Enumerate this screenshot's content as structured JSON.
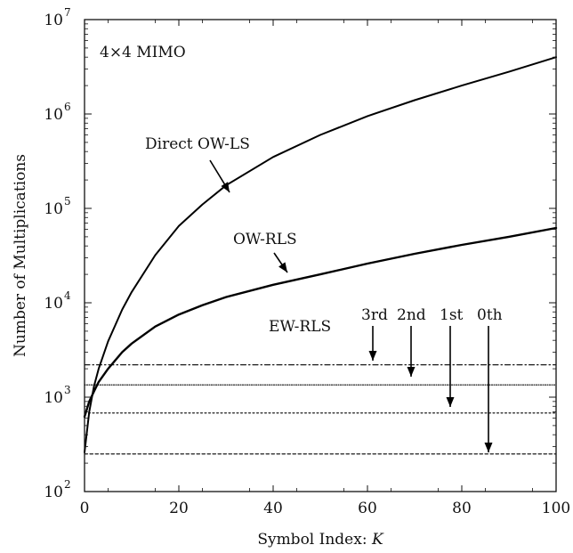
{
  "chart_data": {
    "type": "line",
    "title": "",
    "xlabel": "Symbol Index: ",
    "xlabel_var": "K",
    "ylabel": "Number of Multiplications",
    "xlim": [
      0,
      100
    ],
    "ylim": [
      100,
      10000000
    ],
    "yscale": "log",
    "grid": false,
    "x_ticks": [
      0,
      20,
      40,
      60,
      80,
      100
    ],
    "x_tick_labels": [
      "0",
      "20",
      "40",
      "60",
      "80",
      "100"
    ],
    "y_ticks": [
      100,
      1000,
      10000,
      100000,
      1000000,
      10000000
    ],
    "y_tick_labels": [
      {
        "base": "10",
        "exp": "2"
      },
      {
        "base": "10",
        "exp": "3"
      },
      {
        "base": "10",
        "exp": "4"
      },
      {
        "base": "10",
        "exp": "5"
      },
      {
        "base": "10",
        "exp": "6"
      },
      {
        "base": "10",
        "exp": "7"
      }
    ],
    "annotations": {
      "mimo": "4×4 MIMO",
      "direct": "Direct OW-LS",
      "owrls": "OW-RLS",
      "ewrls": "EW-RLS",
      "third": "3rd",
      "second": "2nd",
      "first": "1st",
      "zeroth": "0th"
    },
    "series": [
      {
        "name": "Direct OW-LS",
        "style": "solid",
        "x": [
          0,
          1,
          2,
          3,
          5,
          8,
          10,
          15,
          20,
          25,
          30,
          40,
          50,
          60,
          70,
          80,
          90,
          100
        ],
        "y": [
          260,
          700,
          1300,
          2000,
          3900,
          8500,
          13000,
          32000,
          65000,
          110000,
          175000,
          350000,
          600000,
          950000,
          1400000,
          2000000,
          2800000,
          4000000
        ]
      },
      {
        "name": "OW-RLS",
        "style": "solid",
        "x": [
          0,
          1,
          2,
          3,
          5,
          8,
          10,
          15,
          20,
          25,
          30,
          40,
          50,
          60,
          70,
          80,
          90,
          100
        ],
        "y": [
          620,
          900,
          1150,
          1450,
          2000,
          3000,
          3700,
          5600,
          7500,
          9400,
          11500,
          15500,
          20000,
          26000,
          33000,
          41000,
          50000,
          62000
        ]
      },
      {
        "name": "3rd",
        "style": "dashdot",
        "x": [
          0,
          100
        ],
        "y": [
          2200,
          2200
        ]
      },
      {
        "name": "2nd",
        "style": "dotted-fine",
        "x": [
          0,
          100
        ],
        "y": [
          1350,
          1350
        ]
      },
      {
        "name": "1st",
        "style": "dotted",
        "x": [
          0,
          100
        ],
        "y": [
          680,
          680
        ]
      },
      {
        "name": "0th",
        "style": "dashed",
        "x": [
          0,
          100
        ],
        "y": [
          250,
          250
        ]
      }
    ]
  }
}
